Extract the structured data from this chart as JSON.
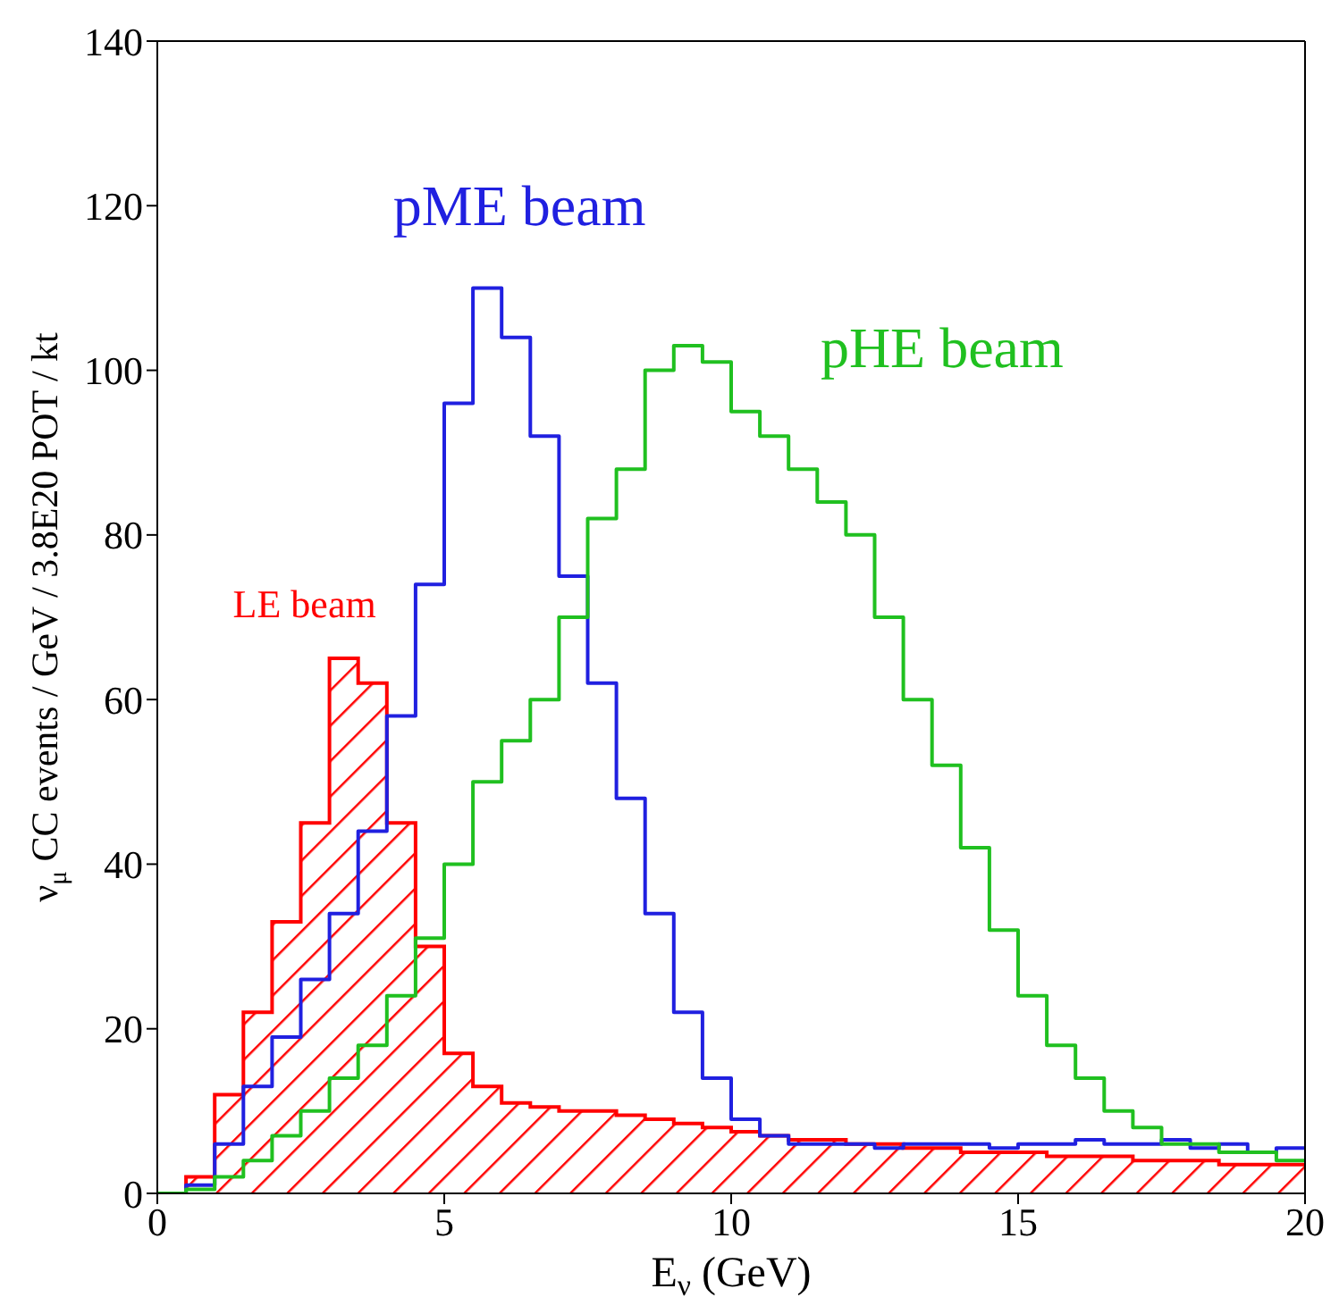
{
  "chart_data": {
    "type": "histogram",
    "xlabel": "E$_{ν}$ (GeV)",
    "ylabel": "ν$_{μ}$ CC events / GeV / 3.8E20 POT / kt",
    "bins": [
      0,
      0.5,
      1,
      1.5,
      2,
      2.5,
      3,
      3.5,
      4,
      4.5,
      5,
      5.5,
      6,
      6.5,
      7,
      7.5,
      8,
      8.5,
      9,
      9.5,
      10,
      10.5,
      11,
      11.5,
      12,
      12.5,
      13,
      13.5,
      14,
      14.5,
      15,
      15.5,
      16,
      16.5,
      17,
      17.5,
      18,
      18.5,
      19,
      19.5,
      20
    ],
    "series": [
      {
        "name": "LE beam",
        "color": "#ff0000",
        "values": [
          0,
          2,
          12,
          22,
          33,
          45,
          65,
          62,
          45,
          30,
          17,
          13,
          11,
          10.5,
          10,
          10,
          9.5,
          9,
          8.5,
          8,
          7.5,
          7,
          6.5,
          6.5,
          6,
          6,
          5.5,
          5.5,
          5,
          5,
          5,
          4.5,
          4.5,
          4.5,
          4,
          4,
          4,
          3.5,
          3.5,
          3.5
        ]
      },
      {
        "name": "pME beam",
        "color": "#2020e0",
        "values": [
          0,
          1,
          6,
          13,
          19,
          26,
          34,
          44,
          58,
          74,
          96,
          110,
          104,
          92,
          75,
          62,
          48,
          34,
          22,
          14,
          9,
          7,
          6,
          6,
          6,
          5.5,
          6,
          6,
          6,
          5.5,
          6,
          6,
          6.5,
          6,
          6,
          6.5,
          5.5,
          6,
          5,
          5.5
        ]
      },
      {
        "name": "pHE beam",
        "color": "#20c020",
        "values": [
          0,
          0.5,
          2,
          4,
          7,
          10,
          14,
          18,
          24,
          31,
          40,
          50,
          55,
          60,
          70,
          82,
          88,
          100,
          103,
          101,
          95,
          92,
          88,
          84,
          80,
          70,
          60,
          52,
          42,
          32,
          24,
          18,
          14,
          10,
          8,
          6,
          6,
          5,
          5,
          4
        ]
      }
    ],
    "xlim": [
      0,
      20
    ],
    "xticks": [
      0,
      5,
      10,
      15,
      20
    ],
    "ylim": [
      0,
      140
    ],
    "yticks": [
      0,
      20,
      40,
      60,
      80,
      100,
      120,
      140
    ],
    "grid": false,
    "legend": false
  }
}
